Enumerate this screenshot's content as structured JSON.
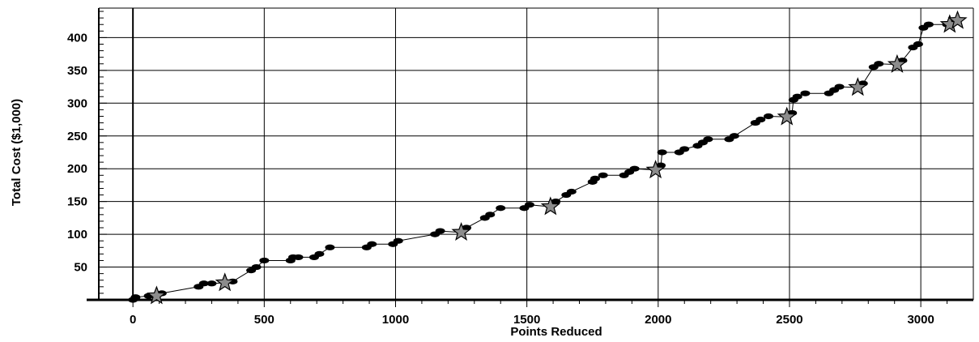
{
  "chart_data": {
    "type": "line",
    "xlabel": "Points Reduced",
    "ylabel": "Total Cost ($1,000)",
    "xlim": [
      -130,
      3200
    ],
    "ylim": [
      0,
      445
    ],
    "x_ticks": [
      0,
      500,
      1000,
      1500,
      2000,
      2500,
      3000
    ],
    "y_ticks": [
      50,
      100,
      150,
      200,
      250,
      300,
      350,
      400
    ],
    "grid": true,
    "series": [
      {
        "marker": "ellipse",
        "points": [
          [
            0,
            0
          ],
          [
            10,
            4
          ],
          [
            60,
            6
          ],
          [
            110,
            10
          ],
          [
            250,
            20
          ],
          [
            270,
            25
          ],
          [
            300,
            25
          ],
          [
            380,
            28
          ],
          [
            450,
            45
          ],
          [
            470,
            50
          ],
          [
            500,
            60
          ],
          [
            600,
            60
          ],
          [
            610,
            65
          ],
          [
            630,
            65
          ],
          [
            690,
            65
          ],
          [
            710,
            70
          ],
          [
            750,
            80
          ],
          [
            890,
            80
          ],
          [
            910,
            85
          ],
          [
            990,
            85
          ],
          [
            1010,
            90
          ],
          [
            1150,
            100
          ],
          [
            1170,
            105
          ],
          [
            1270,
            110
          ],
          [
            1340,
            125
          ],
          [
            1360,
            130
          ],
          [
            1400,
            140
          ],
          [
            1490,
            140
          ],
          [
            1510,
            145
          ],
          [
            1610,
            150
          ],
          [
            1650,
            160
          ],
          [
            1670,
            165
          ],
          [
            1750,
            180
          ],
          [
            1760,
            185
          ],
          [
            1790,
            190
          ],
          [
            1870,
            190
          ],
          [
            1890,
            195
          ],
          [
            1910,
            200
          ],
          [
            2010,
            205
          ],
          [
            2015,
            225
          ],
          [
            2080,
            225
          ],
          [
            2100,
            230
          ],
          [
            2150,
            235
          ],
          [
            2170,
            240
          ],
          [
            2190,
            245
          ],
          [
            2270,
            245
          ],
          [
            2290,
            250
          ],
          [
            2370,
            270
          ],
          [
            2390,
            275
          ],
          [
            2420,
            280
          ],
          [
            2510,
            285
          ],
          [
            2515,
            305
          ],
          [
            2530,
            310
          ],
          [
            2560,
            315
          ],
          [
            2650,
            315
          ],
          [
            2670,
            320
          ],
          [
            2690,
            325
          ],
          [
            2780,
            330
          ],
          [
            2820,
            355
          ],
          [
            2840,
            360
          ],
          [
            2930,
            365
          ],
          [
            2970,
            385
          ],
          [
            2990,
            390
          ],
          [
            3010,
            415
          ],
          [
            3030,
            420
          ],
          [
            3100,
            420
          ]
        ]
      },
      {
        "marker": "star",
        "points": [
          [
            90,
            6
          ],
          [
            350,
            26
          ],
          [
            1250,
            103
          ],
          [
            1590,
            142
          ],
          [
            1990,
            198
          ],
          [
            2490,
            279
          ],
          [
            2760,
            324
          ],
          [
            2910,
            359
          ],
          [
            3110,
            420
          ],
          [
            3140,
            426
          ]
        ]
      }
    ],
    "colors": {
      "line": "#000000",
      "ellipse_marker": "#000000",
      "star_fill": "#8c8c8c",
      "star_stroke": "#000000"
    }
  }
}
